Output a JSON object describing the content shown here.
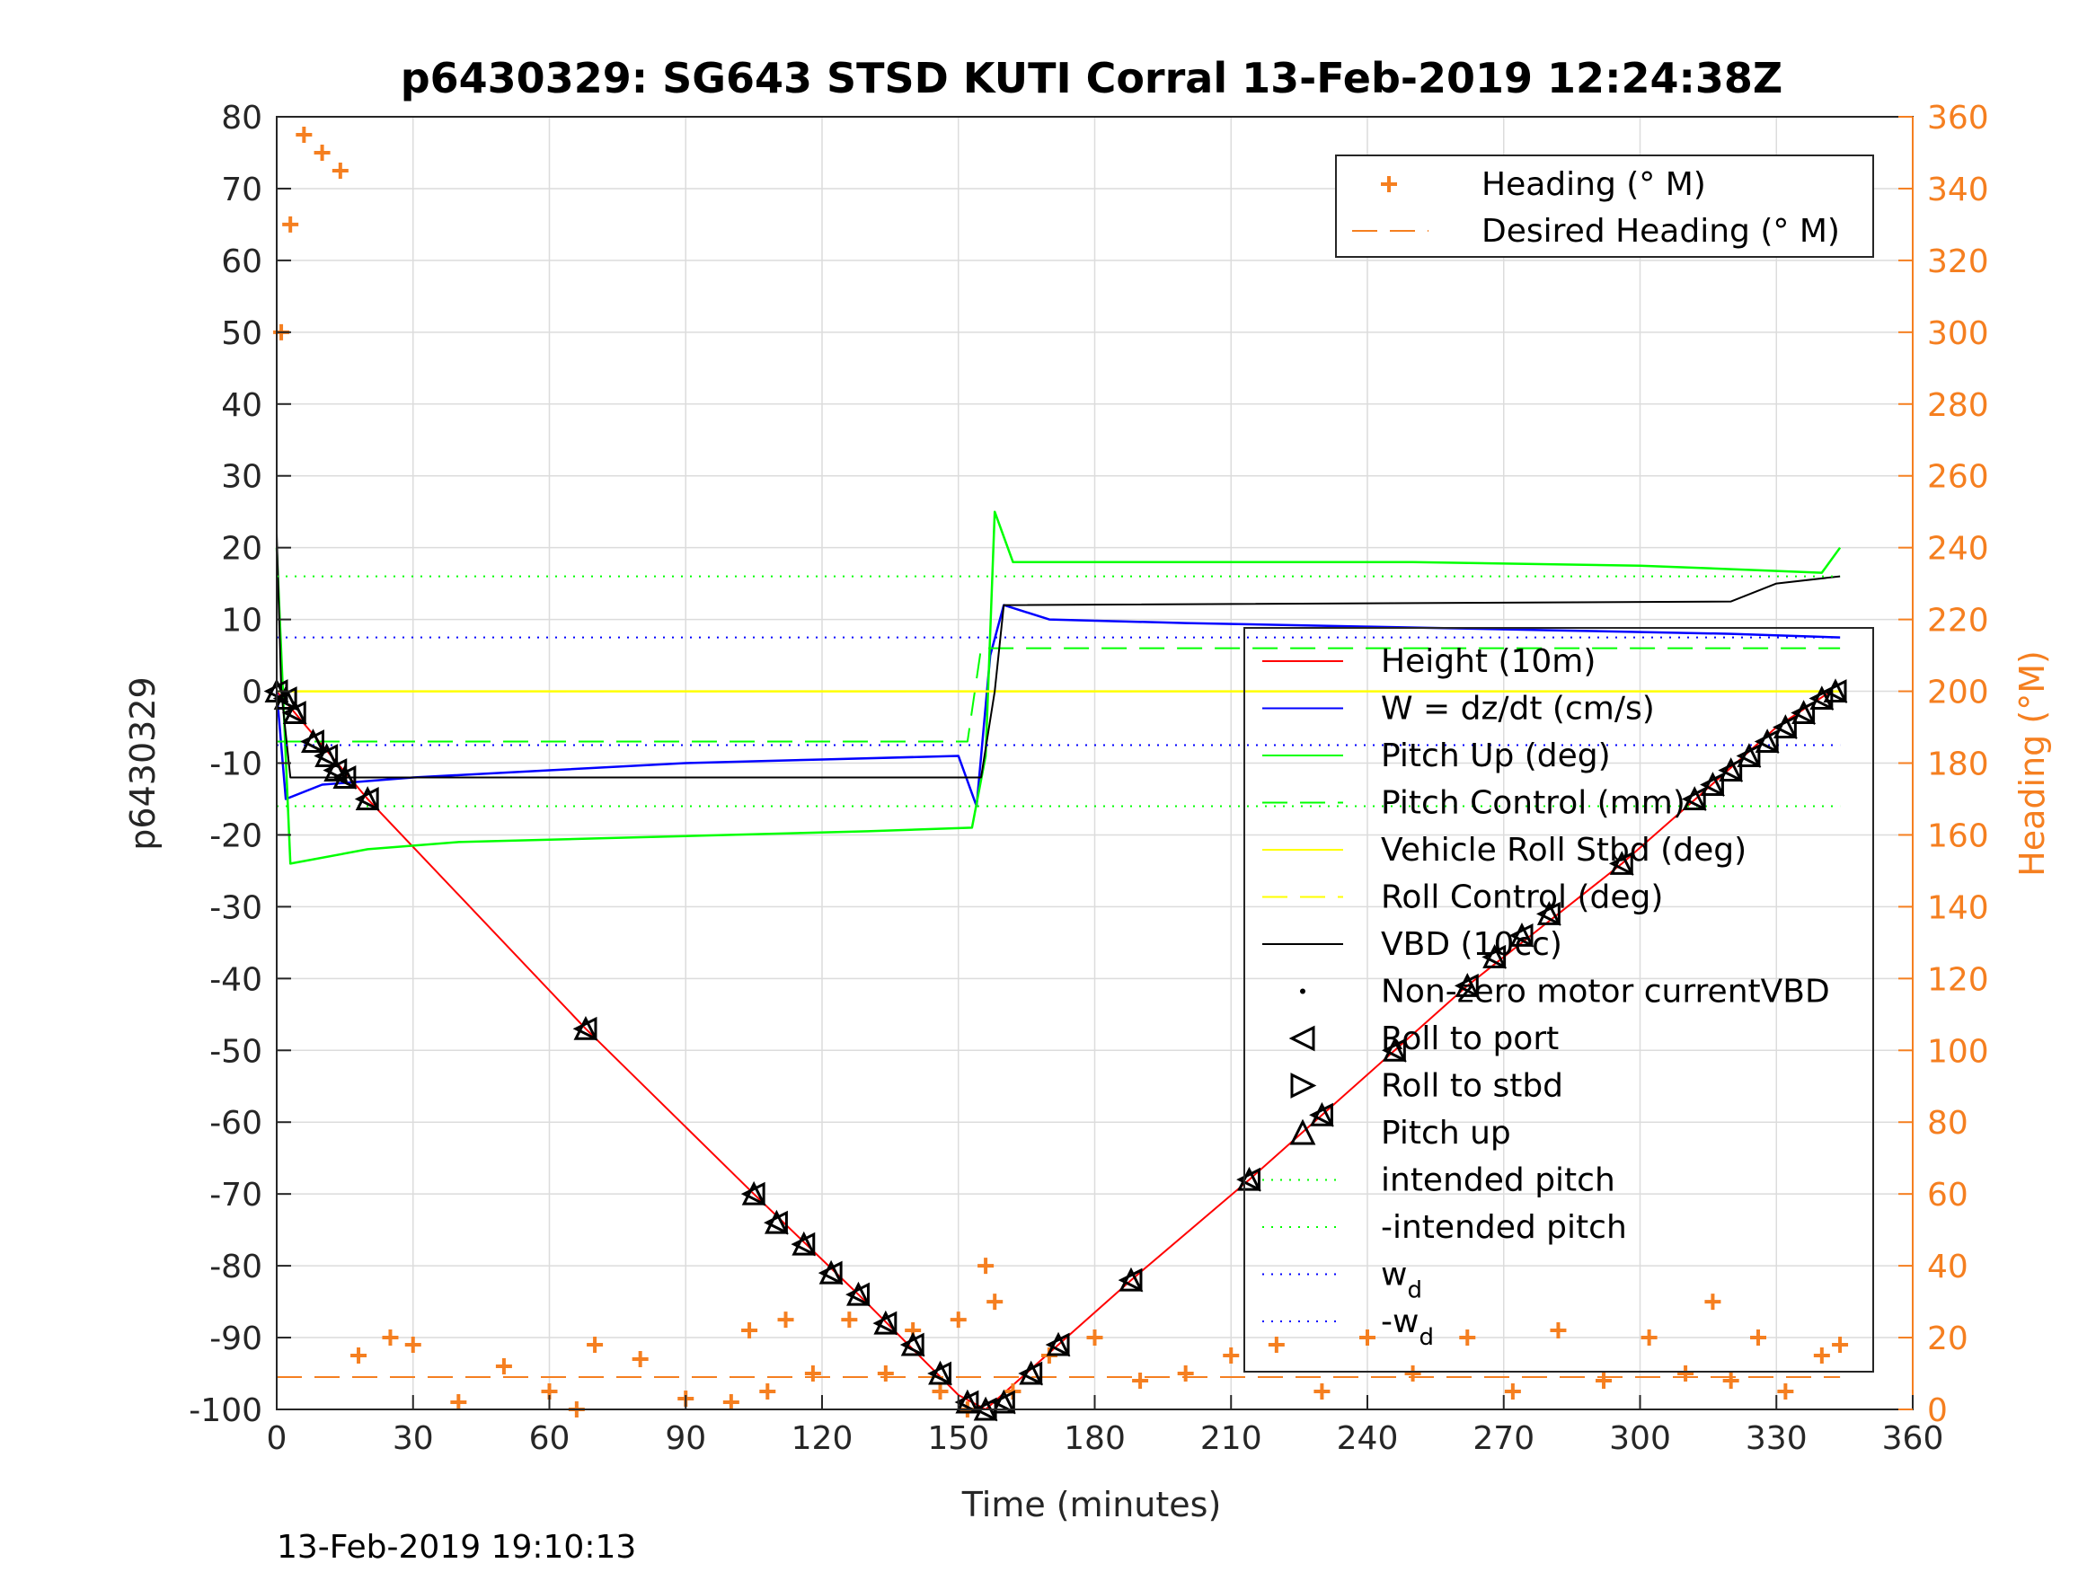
{
  "figure": {
    "title": "p6430329: SG643 STSD KUTI Corral 13-Feb-2019 12:24:38Z",
    "timestamp": "13-Feb-2019 19:10:13"
  },
  "chart_data": {
    "type": "line",
    "title": "p6430329: SG643 STSD KUTI Corral 13-Feb-2019 12:24:38Z",
    "xlabel": "Time (minutes)",
    "ylabel_left": "p6430329",
    "ylabel_right": "Heading (°M)",
    "xlim": [
      0,
      360
    ],
    "ylim_left": [
      -100,
      80
    ],
    "ylim_right": [
      0,
      360
    ],
    "xticks": [
      0,
      30,
      60,
      90,
      120,
      150,
      180,
      210,
      240,
      270,
      300,
      330,
      360
    ],
    "yticks_left": [
      80,
      70,
      60,
      50,
      40,
      30,
      20,
      10,
      0,
      -10,
      -20,
      -30,
      -40,
      -50,
      -60,
      -70,
      -80,
      -90,
      -100
    ],
    "yticks_right": [
      360,
      340,
      320,
      300,
      280,
      260,
      240,
      220,
      200,
      180,
      160,
      140,
      120,
      100,
      80,
      60,
      40,
      20,
      0
    ],
    "grid": true,
    "colors": {
      "height": "#ff0000",
      "w": "#0000ff",
      "pitch": "#00ff00",
      "roll": "#ffff00",
      "vbd": "#000000",
      "heading": "#f57f20",
      "axis": "#262626"
    },
    "series": [
      {
        "name": "Height (10m)",
        "x": [
          0,
          20,
          68,
          105,
          128,
          150,
          156,
          172,
          188,
          214,
          246,
          262,
          280,
          296,
          314,
          330,
          342
        ],
        "y": [
          0,
          -15,
          -47,
          -70,
          -84,
          -98,
          -100,
          -91,
          -82,
          -68,
          -50,
          -41,
          -32,
          -24,
          -14,
          -5,
          0
        ]
      },
      {
        "name": "W = dz/dt (cm/s)",
        "x": [
          0,
          2,
          10,
          30,
          60,
          90,
          120,
          150,
          154,
          157,
          160,
          170,
          200,
          240,
          280,
          320,
          344
        ],
        "y": [
          0,
          -15,
          -13,
          -12,
          -11,
          -10,
          -9.5,
          -9,
          -16,
          5,
          12,
          10,
          9.5,
          9,
          8.5,
          8,
          7.5
        ]
      },
      {
        "name": "Pitch Up (deg)",
        "x": [
          0,
          3,
          20,
          40,
          70,
          100,
          130,
          153,
          156,
          158,
          162,
          200,
          250,
          300,
          320,
          340,
          344
        ],
        "y": [
          20,
          -24,
          -22,
          -21,
          -20.5,
          -20,
          -19.5,
          -19,
          -9,
          25,
          18,
          18,
          18,
          17.5,
          17,
          16.5,
          20
        ]
      },
      {
        "name": "Pitch Control (mm)",
        "x": [
          0,
          152,
          155,
          344
        ],
        "y": [
          -7,
          -7,
          6,
          6
        ]
      },
      {
        "name": "Vehicle Roll Stbd (deg)",
        "x": [
          0,
          344
        ],
        "y": [
          0,
          0
        ]
      },
      {
        "name": "Roll Control (deg)",
        "x": [
          0,
          344
        ],
        "y": [
          0,
          0
        ]
      },
      {
        "name": "VBD (10cc)",
        "x": [
          0,
          1,
          3,
          155,
          158,
          160,
          320,
          330,
          344
        ],
        "y": [
          22,
          0,
          -12,
          -12,
          0,
          12,
          12.5,
          15,
          16
        ]
      },
      {
        "name": "intended pitch",
        "x": [
          0,
          344
        ],
        "y": [
          16,
          16
        ]
      },
      {
        "name": "-intended pitch",
        "x": [
          0,
          344
        ],
        "y": [
          -16,
          -16
        ]
      },
      {
        "name": "w_d",
        "x": [
          0,
          344
        ],
        "y": [
          7.5,
          7.5
        ]
      },
      {
        "name": "-w_d",
        "x": [
          0,
          344
        ],
        "y": [
          -7.5,
          -7.5
        ]
      },
      {
        "name": "Heading (° M)",
        "axis": "right",
        "x": [
          1,
          3,
          6,
          10,
          14,
          18,
          25,
          30,
          40,
          50,
          60,
          66,
          70,
          80,
          90,
          100,
          104,
          108,
          112,
          118,
          126,
          134,
          140,
          146,
          150,
          152,
          156,
          158,
          162,
          170,
          180,
          190,
          200,
          210,
          220,
          230,
          240,
          250,
          262,
          272,
          282,
          292,
          302,
          310,
          316,
          320,
          326,
          332,
          340,
          344
        ],
        "y": [
          300,
          330,
          355,
          350,
          345,
          15,
          20,
          18,
          2,
          12,
          5,
          0,
          18,
          14,
          3,
          2,
          22,
          5,
          25,
          10,
          25,
          10,
          22,
          5,
          25,
          0,
          40,
          30,
          5,
          15,
          20,
          8,
          10,
          15,
          18,
          5,
          20,
          10,
          20,
          5,
          22,
          8,
          20,
          10,
          30,
          8,
          20,
          5,
          15,
          18
        ]
      },
      {
        "name": "Desired Heading (° M)",
        "axis": "right",
        "x": [
          0,
          344
        ],
        "y": [
          9,
          9
        ]
      }
    ],
    "legend_right_axis": [
      {
        "label": "Heading (° M)",
        "marker": "+",
        "color": "#f57f20"
      },
      {
        "label": "Desired Heading (° M)",
        "marker": "dash",
        "color": "#f57f20"
      }
    ],
    "legend_left_axis": [
      {
        "label": "Height (10m)",
        "marker": "line",
        "color": "#ff0000"
      },
      {
        "label": "W = dz/dt (cm/s)",
        "marker": "line",
        "color": "#0000ff"
      },
      {
        "label": "Pitch Up (deg)",
        "marker": "line",
        "color": "#00ff00"
      },
      {
        "label": "Pitch Control (mm)",
        "marker": "dash",
        "color": "#00ff00"
      },
      {
        "label": "Vehicle Roll Stbd (deg)",
        "marker": "line",
        "color": "#ffff00"
      },
      {
        "label": "Roll Control (deg)",
        "marker": "dash",
        "color": "#ffff00"
      },
      {
        "label": "VBD (10cc)",
        "marker": "line",
        "color": "#000000"
      },
      {
        "label": "Non-zero motor currentVBD",
        "marker": "dot",
        "color": "#000000"
      },
      {
        "label": "Roll to port",
        "marker": "tri-left",
        "color": "#000000"
      },
      {
        "label": "Roll to stbd",
        "marker": "tri-right",
        "color": "#000000"
      },
      {
        "label": "Pitch up",
        "marker": "tri-up",
        "color": "#000000"
      },
      {
        "label": "intended pitch",
        "marker": "dot-line",
        "color": "#00ff00"
      },
      {
        "label": "-intended pitch",
        "marker": "dot-line",
        "color": "#00ff00"
      },
      {
        "label": "w",
        "sub": "d",
        "marker": "dot-line",
        "color": "#0000ff"
      },
      {
        "label": "-w",
        "sub": "d",
        "marker": "dot-line",
        "color": "#0000ff"
      }
    ],
    "markers": [
      {
        "x": 0,
        "y": 0
      },
      {
        "x": 2,
        "y": -1
      },
      {
        "x": 4,
        "y": -3
      },
      {
        "x": 8,
        "y": -7
      },
      {
        "x": 11,
        "y": -9
      },
      {
        "x": 13,
        "y": -11
      },
      {
        "x": 15,
        "y": -12
      },
      {
        "x": 20,
        "y": -15
      },
      {
        "x": 68,
        "y": -47
      },
      {
        "x": 105,
        "y": -70
      },
      {
        "x": 110,
        "y": -74
      },
      {
        "x": 116,
        "y": -77
      },
      {
        "x": 122,
        "y": -81
      },
      {
        "x": 128,
        "y": -84
      },
      {
        "x": 134,
        "y": -88
      },
      {
        "x": 140,
        "y": -91
      },
      {
        "x": 146,
        "y": -95
      },
      {
        "x": 152,
        "y": -99
      },
      {
        "x": 156,
        "y": -100
      },
      {
        "x": 160,
        "y": -99
      },
      {
        "x": 166,
        "y": -95
      },
      {
        "x": 172,
        "y": -91
      },
      {
        "x": 188,
        "y": -82
      },
      {
        "x": 214,
        "y": -68
      },
      {
        "x": 230,
        "y": -59
      },
      {
        "x": 246,
        "y": -50
      },
      {
        "x": 262,
        "y": -41
      },
      {
        "x": 268,
        "y": -37
      },
      {
        "x": 274,
        "y": -34
      },
      {
        "x": 280,
        "y": -31
      },
      {
        "x": 296,
        "y": -24
      },
      {
        "x": 312,
        "y": -15
      },
      {
        "x": 316,
        "y": -13
      },
      {
        "x": 320,
        "y": -11
      },
      {
        "x": 324,
        "y": -9
      },
      {
        "x": 328,
        "y": -7
      },
      {
        "x": 332,
        "y": -5
      },
      {
        "x": 336,
        "y": -3
      },
      {
        "x": 340,
        "y": -1
      },
      {
        "x": 343,
        "y": 0
      }
    ]
  }
}
